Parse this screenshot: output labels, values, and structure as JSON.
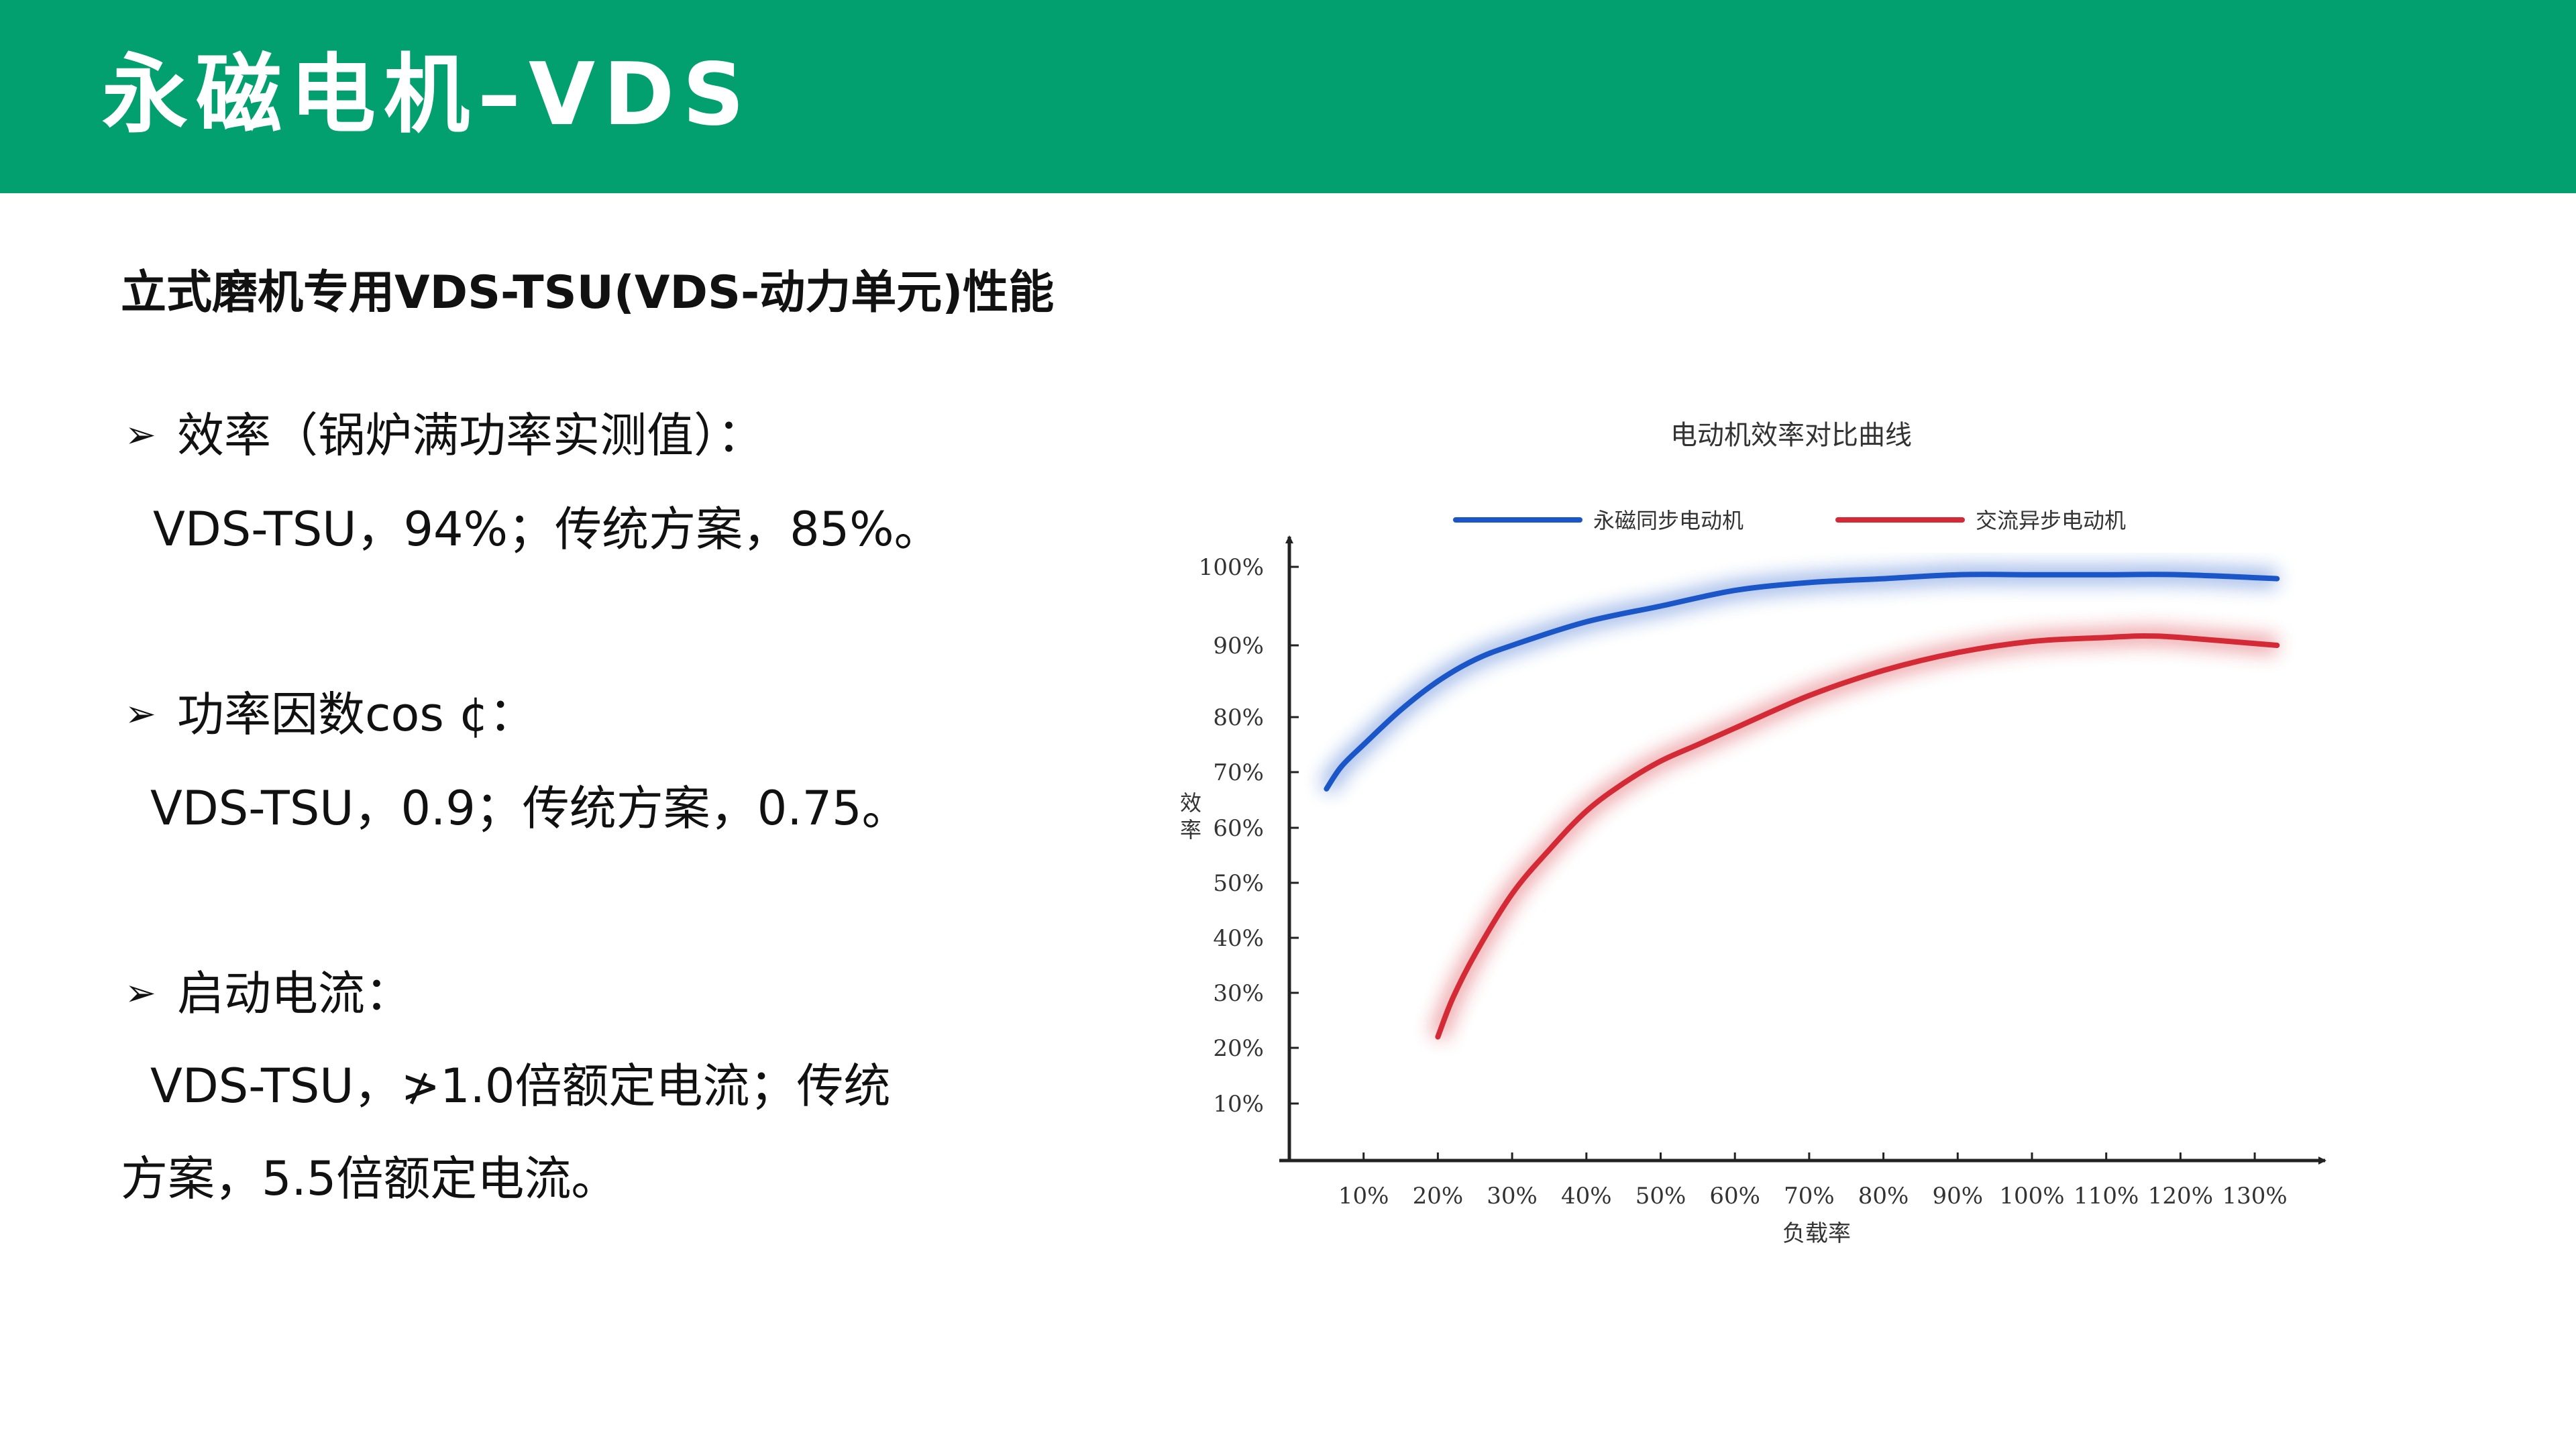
{
  "header": {
    "title": "永磁电机–VDS"
  },
  "subtitle": "立式磨机专用VDS-TSU(VDS-动力单元)性能",
  "bullet_icon": "arrow-bullet-icon",
  "points": [
    {
      "heading": "效率（锅炉满功率实测值）：",
      "line1": "VDS-TSU，94%；传统方案，85%。"
    },
    {
      "heading": "功率因数cos ¢：",
      "line1": "VDS-TSU，0.9；传统方案，0.75。"
    },
    {
      "heading": "启动电流：",
      "line1": "VDS-TSU，≯1.0倍额定电流；传统",
      "line2": "方案，5.5倍额定电流。"
    }
  ],
  "colors": {
    "header_bg": "#02a06e",
    "pm_motor": "#1a56c8",
    "ac_motor": "#d42a36"
  },
  "chart_data": {
    "type": "line",
    "title": "电动机效率对比曲线",
    "xlabel": "负载率",
    "ylabel": "效率",
    "x_ticks": [
      "10%",
      "20%",
      "30%",
      "40%",
      "50%",
      "60%",
      "70%",
      "80%",
      "90%",
      "100%",
      "110%",
      "120%",
      "130%"
    ],
    "y_ticks": [
      "10%",
      "20%",
      "30%",
      "40%",
      "50%",
      "60%",
      "70%",
      "80%",
      "90%",
      "100%"
    ],
    "xlim": [
      0,
      140
    ],
    "ylim": [
      0,
      100
    ],
    "legend_position": "top",
    "grid": false,
    "series": [
      {
        "name": "永磁同步电动机",
        "color": "#1a56c8",
        "points": [
          [
            5,
            67
          ],
          [
            7,
            71
          ],
          [
            10,
            75
          ],
          [
            15,
            81
          ],
          [
            20,
            85
          ],
          [
            25,
            88
          ],
          [
            30,
            90
          ],
          [
            40,
            93
          ],
          [
            50,
            95
          ],
          [
            60,
            97
          ],
          [
            70,
            98
          ],
          [
            80,
            98.5
          ],
          [
            90,
            99
          ],
          [
            100,
            99
          ],
          [
            110,
            99
          ],
          [
            120,
            99
          ],
          [
            133,
            98.5
          ]
        ]
      },
      {
        "name": "交流异步电动机",
        "color": "#d42a36",
        "points": [
          [
            20,
            22
          ],
          [
            22,
            29
          ],
          [
            25,
            37
          ],
          [
            30,
            48
          ],
          [
            35,
            56
          ],
          [
            40,
            63
          ],
          [
            45,
            68
          ],
          [
            50,
            72
          ],
          [
            55,
            75
          ],
          [
            60,
            78
          ],
          [
            70,
            83
          ],
          [
            80,
            86.5
          ],
          [
            90,
            89
          ],
          [
            100,
            90.5
          ],
          [
            110,
            91
          ],
          [
            115,
            91.2
          ],
          [
            120,
            91
          ],
          [
            133,
            90
          ]
        ]
      }
    ]
  }
}
